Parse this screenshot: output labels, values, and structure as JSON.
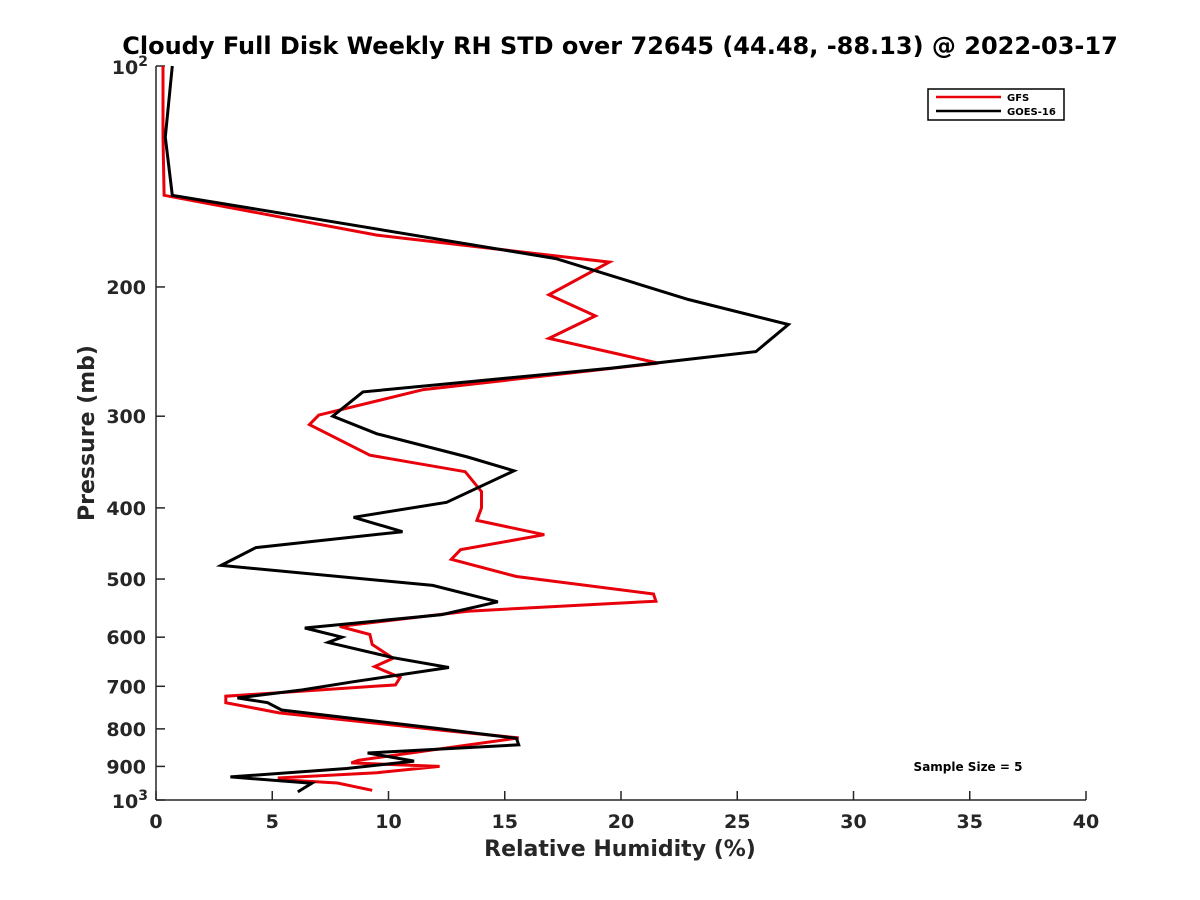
{
  "chart_data": {
    "type": "line",
    "title": "Cloudy Full Disk Weekly RH STD over 72645 (44.48, -88.13) @ 2022-03-17",
    "xlabel": "Relative Humidity (%)",
    "ylabel": "Pressure (mb)",
    "xlim": [
      0,
      40
    ],
    "ylim": [
      100,
      1000
    ],
    "yscale": "log",
    "y_reversed": true,
    "grid": false,
    "legend_position": "top-right",
    "x_ticks": [
      "0",
      "5",
      "10",
      "15",
      "20",
      "25",
      "30",
      "35",
      "40"
    ],
    "y_ticks": [
      {
        "value": 200,
        "label": "200"
      },
      {
        "value": 300,
        "label": "300"
      },
      {
        "value": 400,
        "label": "400"
      },
      {
        "value": 500,
        "label": "500"
      },
      {
        "value": 600,
        "label": "600"
      },
      {
        "value": 700,
        "label": "700"
      },
      {
        "value": 800,
        "label": "800"
      },
      {
        "value": 900,
        "label": "900"
      }
    ],
    "y_ticks_exp": [
      {
        "value": 100,
        "base": "10",
        "exp": "2"
      },
      {
        "value": 1000,
        "base": "10",
        "exp": "3"
      }
    ],
    "series": [
      {
        "name": "GFS",
        "color": "#e8000b",
        "points": [
          [
            0.3,
            100
          ],
          [
            0.3,
            125
          ],
          [
            0.35,
            150
          ],
          [
            9.5,
            170
          ],
          [
            19.5,
            185
          ],
          [
            16.9,
            205
          ],
          [
            18.9,
            219
          ],
          [
            16.9,
            235
          ],
          [
            21.6,
            254
          ],
          [
            11.5,
            276
          ],
          [
            7.0,
            299
          ],
          [
            6.6,
            308
          ],
          [
            9.2,
            339
          ],
          [
            13.3,
            357
          ],
          [
            14.0,
            380
          ],
          [
            14.0,
            400
          ],
          [
            13.8,
            416
          ],
          [
            16.7,
            435
          ],
          [
            13.1,
            456
          ],
          [
            12.7,
            470
          ],
          [
            15.5,
            496
          ],
          [
            21.4,
            524
          ],
          [
            21.5,
            536
          ],
          [
            13.4,
            553
          ],
          [
            7.9,
            580
          ],
          [
            9.2,
            595
          ],
          [
            9.3,
            614
          ],
          [
            10.2,
            641
          ],
          [
            9.4,
            658
          ],
          [
            10.5,
            681
          ],
          [
            10.3,
            697
          ],
          [
            3.0,
            722
          ],
          [
            3.0,
            737
          ],
          [
            5.3,
            761
          ],
          [
            12.4,
            804
          ],
          [
            15.6,
            823
          ],
          [
            8.7,
            883
          ],
          [
            8.4,
            890
          ],
          [
            12.2,
            900
          ],
          [
            9.5,
            918
          ],
          [
            5.3,
            933
          ],
          [
            5.3,
            938
          ],
          [
            7.8,
            948
          ],
          [
            9.3,
            970
          ]
        ]
      },
      {
        "name": "GOES-16",
        "color": "#000000",
        "points": [
          [
            0.7,
            100
          ],
          [
            0.4,
            125
          ],
          [
            0.7,
            150
          ],
          [
            17.2,
            183
          ],
          [
            22.9,
            208
          ],
          [
            27.2,
            225
          ],
          [
            25.8,
            245
          ],
          [
            19.6,
            258
          ],
          [
            8.9,
            278
          ],
          [
            7.6,
            300
          ],
          [
            9.5,
            317
          ],
          [
            13.4,
            341
          ],
          [
            15.4,
            356
          ],
          [
            12.5,
            393
          ],
          [
            8.5,
            412
          ],
          [
            10.6,
            431
          ],
          [
            4.3,
            453
          ],
          [
            2.8,
            479
          ],
          [
            11.9,
            510
          ],
          [
            14.7,
            537
          ],
          [
            12.3,
            559
          ],
          [
            6.4,
            583
          ],
          [
            8.0,
            600
          ],
          [
            7.4,
            610
          ],
          [
            10.2,
            640
          ],
          [
            12.6,
            660
          ],
          [
            8.5,
            690
          ],
          [
            6.3,
            708
          ],
          [
            3.5,
            726
          ],
          [
            4.8,
            737
          ],
          [
            5.4,
            754
          ],
          [
            12.0,
            798
          ],
          [
            15.5,
            824
          ],
          [
            15.6,
            841
          ],
          [
            9.1,
            863
          ],
          [
            11.1,
            885
          ],
          [
            8.2,
            906
          ],
          [
            3.2,
            930
          ],
          [
            6.7,
            949
          ],
          [
            6.1,
            975
          ]
        ]
      }
    ],
    "annotation": "Sample Size = 5"
  }
}
